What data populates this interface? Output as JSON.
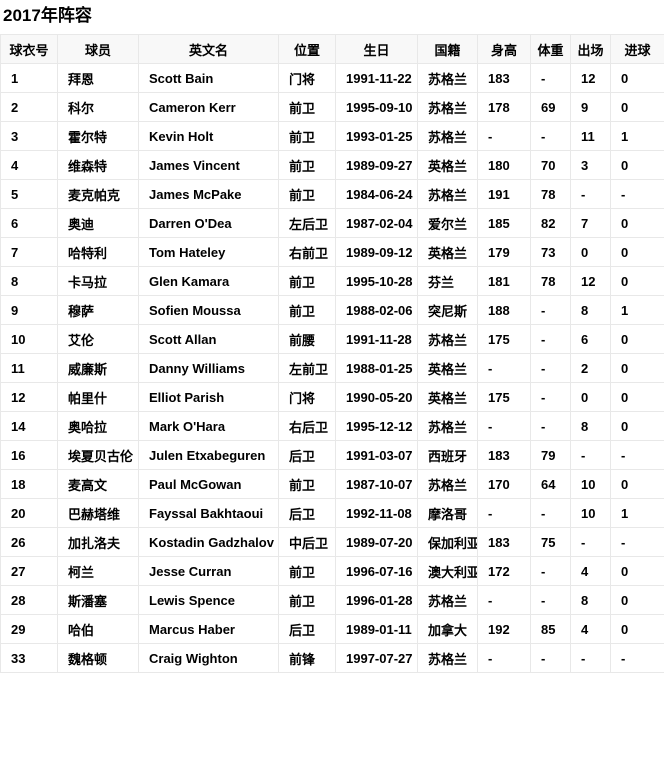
{
  "page": {
    "title": "2017年阵容"
  },
  "colors": {
    "header_bg": "#f8f8f8",
    "row_bg": "#ffffff",
    "border": "#e8e8e8",
    "text": "#000000"
  },
  "table": {
    "columns": [
      {
        "key": "number",
        "label": "球衣号"
      },
      {
        "key": "player",
        "label": "球员"
      },
      {
        "key": "en-name",
        "label": "英文名"
      },
      {
        "key": "position",
        "label": "位置"
      },
      {
        "key": "birthday",
        "label": "生日"
      },
      {
        "key": "nationality",
        "label": "国籍"
      },
      {
        "key": "height",
        "label": "身高"
      },
      {
        "key": "weight",
        "label": "体重"
      },
      {
        "key": "appearances",
        "label": "出场"
      },
      {
        "key": "goals",
        "label": "进球"
      }
    ],
    "rows": [
      [
        "1",
        "拜恩",
        "Scott Bain",
        "门将",
        "1991-11-22",
        "苏格兰",
        "183",
        "-",
        "12",
        "0"
      ],
      [
        "2",
        "科尔",
        "Cameron Kerr",
        "前卫",
        "1995-09-10",
        "苏格兰",
        "178",
        "69",
        "9",
        "0"
      ],
      [
        "3",
        "霍尔特",
        "Kevin Holt",
        "前卫",
        "1993-01-25",
        "苏格兰",
        "-",
        "-",
        "11",
        "1"
      ],
      [
        "4",
        "维森特",
        "James Vincent",
        "前卫",
        "1989-09-27",
        "英格兰",
        "180",
        "70",
        "3",
        "0"
      ],
      [
        "5",
        "麦克帕克",
        "James McPake",
        "前卫",
        "1984-06-24",
        "苏格兰",
        "191",
        "78",
        "-",
        "-"
      ],
      [
        "6",
        "奥迪",
        "Darren O'Dea",
        "左后卫",
        "1987-02-04",
        "爱尔兰",
        "185",
        "82",
        "7",
        "0"
      ],
      [
        "7",
        "哈特利",
        "Tom Hateley",
        "右前卫",
        "1989-09-12",
        "英格兰",
        "179",
        "73",
        "0",
        "0"
      ],
      [
        "8",
        "卡马拉",
        "Glen Kamara",
        "前卫",
        "1995-10-28",
        "芬兰",
        "181",
        "78",
        "12",
        "0"
      ],
      [
        "9",
        "穆萨",
        "Sofien Moussa",
        "前卫",
        "1988-02-06",
        "突尼斯",
        "188",
        "-",
        "8",
        "1"
      ],
      [
        "10",
        "艾伦",
        "Scott Allan",
        "前腰",
        "1991-11-28",
        "苏格兰",
        "175",
        "-",
        "6",
        "0"
      ],
      [
        "11",
        "威廉斯",
        "Danny Williams",
        "左前卫",
        "1988-01-25",
        "英格兰",
        "-",
        "-",
        "2",
        "0"
      ],
      [
        "12",
        "帕里什",
        "Elliot Parish",
        "门将",
        "1990-05-20",
        "英格兰",
        "175",
        "-",
        "0",
        "0"
      ],
      [
        "14",
        "奥哈拉",
        "Mark O'Hara",
        "右后卫",
        "1995-12-12",
        "苏格兰",
        "-",
        "-",
        "8",
        "0"
      ],
      [
        "16",
        "埃夏贝古伦",
        "Julen Etxabeguren",
        "后卫",
        "1991-03-07",
        "西班牙",
        "183",
        "79",
        "-",
        "-"
      ],
      [
        "18",
        "麦高文",
        "Paul McGowan",
        "前卫",
        "1987-10-07",
        "苏格兰",
        "170",
        "64",
        "10",
        "0"
      ],
      [
        "20",
        "巴赫塔维",
        "Fayssal Bakhtaoui",
        "后卫",
        "1992-11-08",
        "摩洛哥",
        "-",
        "-",
        "10",
        "1"
      ],
      [
        "26",
        "加扎洛夫",
        "Kostadin Gadzhalov",
        "中后卫",
        "1989-07-20",
        "保加利亚",
        "183",
        "75",
        "-",
        "-"
      ],
      [
        "27",
        "柯兰",
        "Jesse Curran",
        "前卫",
        "1996-07-16",
        "澳大利亚",
        "172",
        "-",
        "4",
        "0"
      ],
      [
        "28",
        "斯潘塞",
        "Lewis Spence",
        "前卫",
        "1996-01-28",
        "苏格兰",
        "-",
        "-",
        "8",
        "0"
      ],
      [
        "29",
        "哈伯",
        "Marcus Haber",
        "后卫",
        "1989-01-11",
        "加拿大",
        "192",
        "85",
        "4",
        "0"
      ],
      [
        "33",
        "魏格顿",
        "Craig Wighton",
        "前锋",
        "1997-07-27",
        "苏格兰",
        "-",
        "-",
        "-",
        "-"
      ]
    ]
  }
}
